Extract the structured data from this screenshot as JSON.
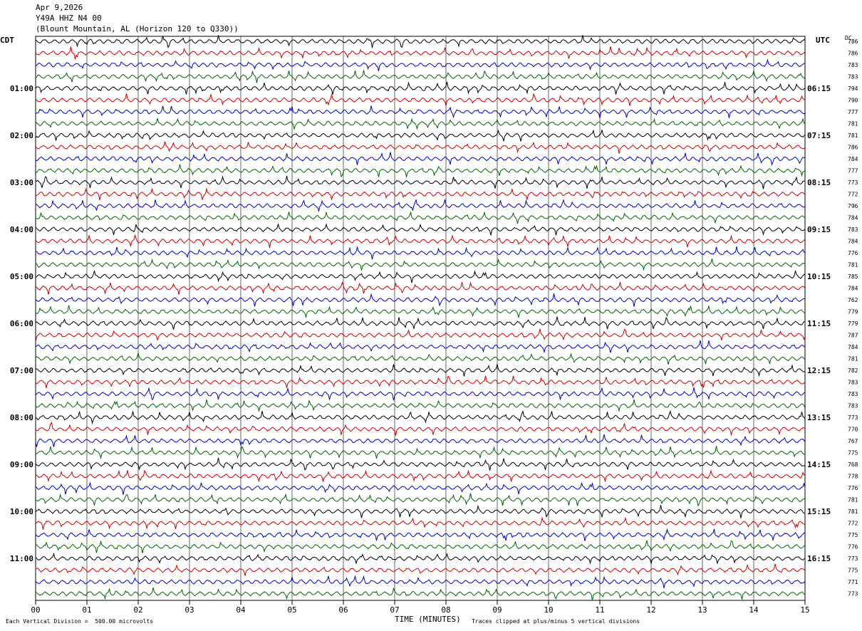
{
  "header": {
    "date": "Apr 9,2026",
    "station": "Y49A HHZ N4 00",
    "location": "(Blount Mountain, AL (Horizon 120 to Q330))"
  },
  "chart_data": {
    "type": "line",
    "title": "Y49A HHZ N4 00",
    "subtitle": "Apr 9,2026  (Blount Mountain, AL (Horizon 120 to Q330))",
    "xlabel": "TIME (MINUTES)",
    "x_ticks": [
      "00",
      "01",
      "02",
      "03",
      "04",
      "05",
      "06",
      "07",
      "08",
      "09",
      "10",
      "11",
      "12",
      "13",
      "14",
      "15"
    ],
    "xlim": [
      0,
      15
    ],
    "grid": true,
    "left_axis_label": "CDT",
    "right_axis_label": "UTC",
    "dc_label": "DC",
    "left_hour_labels": [
      "01:00",
      "02:00",
      "03:00",
      "04:00",
      "05:00",
      "06:00",
      "07:00",
      "08:00",
      "09:00",
      "10:00",
      "11:00"
    ],
    "right_hour_labels": [
      "06:15",
      "07:15",
      "08:15",
      "09:15",
      "10:15",
      "11:15",
      "12:15",
      "13:15",
      "14:15",
      "15:15",
      "16:15"
    ],
    "trace_colors": [
      "#000000",
      "#cc0000",
      "#0000cc",
      "#006600"
    ],
    "dc_offsets": [
      786,
      786,
      783,
      783,
      794,
      790,
      777,
      781,
      781,
      786,
      784,
      777,
      773,
      772,
      796,
      784,
      783,
      784,
      776,
      781,
      785,
      784,
      762,
      779,
      779,
      787,
      784,
      781,
      782,
      783,
      783,
      783,
      773,
      770,
      767,
      775,
      768,
      778,
      776,
      781,
      781,
      772,
      775,
      776,
      773,
      775,
      771,
      773
    ],
    "footer": {
      "vertical_division": "Each Vertical Division =  500.00 microvolts",
      "clipping": "Traces clipped at plus/minus 5 vertical divisions"
    }
  }
}
